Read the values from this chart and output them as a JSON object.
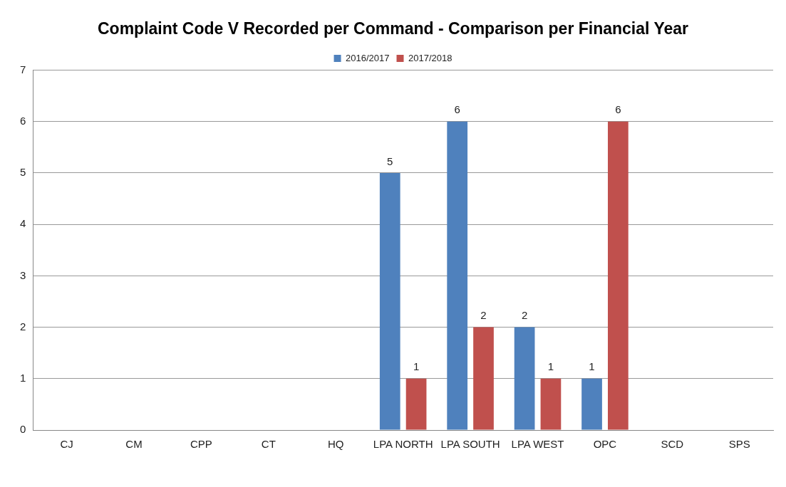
{
  "chart_data": {
    "type": "bar",
    "title": "Complaint Code V Recorded per Command - Comparison per Financial Year",
    "categories": [
      "CJ",
      "CM",
      "CPP",
      "CT",
      "HQ",
      "LPA NORTH",
      "LPA SOUTH",
      "LPA WEST",
      "OPC",
      "SCD",
      "SPS"
    ],
    "series": [
      {
        "name": "2016/2017",
        "color": "#4f81bd",
        "values": [
          0,
          0,
          0,
          0,
          0,
          5,
          6,
          2,
          1,
          0,
          0
        ],
        "value_labels": [
          null,
          null,
          null,
          null,
          null,
          "5",
          "6",
          "2",
          "1",
          null,
          null
        ]
      },
      {
        "name": "2017/2018",
        "color": "#c0504d",
        "values": [
          0,
          0,
          0,
          0,
          0,
          1,
          2,
          1,
          6,
          0,
          0
        ],
        "value_labels": [
          null,
          null,
          null,
          null,
          null,
          "1",
          "2",
          "1",
          "6",
          null,
          null
        ]
      }
    ],
    "ylim": [
      0,
      7
    ],
    "yticks": [
      0,
      1,
      2,
      3,
      4,
      5,
      6,
      7
    ],
    "grid": "y",
    "legend": "top"
  }
}
